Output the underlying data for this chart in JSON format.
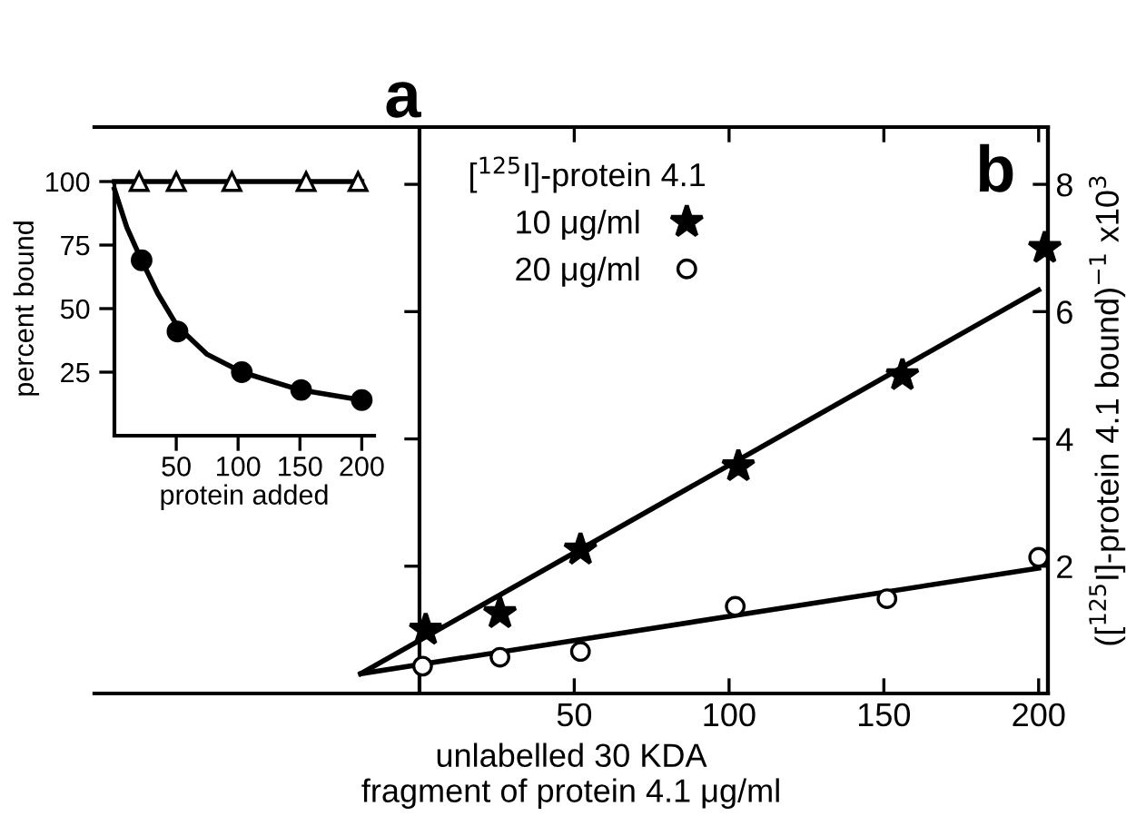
{
  "chart_data": [
    {
      "type": "scatter",
      "xlabel": "protein added",
      "ylabel": "percent bound",
      "annotations": [
        "a"
      ],
      "xlim": [
        0,
        210
      ],
      "ylim": [
        0,
        100
      ],
      "xticks": [
        50,
        100,
        150,
        200
      ],
      "yticks": [
        25,
        50,
        75,
        100
      ],
      "grid": false,
      "legend": false,
      "series": [
        {
          "type": "line",
          "color": "#000000",
          "marker": "none",
          "x": [
            0,
            200
          ],
          "values": [
            100,
            100
          ]
        },
        {
          "color": "#000000",
          "marker": "triangle",
          "x": [
            20,
            50,
            95,
            155,
            197
          ],
          "values": [
            100,
            100,
            100,
            100,
            100
          ]
        },
        {
          "type": "line",
          "color": "#000000",
          "marker": "none",
          "x": [
            0,
            10,
            22,
            35,
            51,
            75,
            103,
            150,
            200
          ],
          "values": [
            97,
            82,
            69,
            56,
            43,
            32,
            25,
            18,
            14
          ]
        },
        {
          "color": "#000000",
          "marker": "circle",
          "x": [
            22,
            51,
            103,
            151,
            200
          ],
          "values": [
            69,
            41,
            25,
            18,
            14
          ]
        }
      ]
    },
    {
      "type": "scatter",
      "xlabel": "unlabelled 30 KDA\nfragment of protein 4.1 μg/ml",
      "y2label": "([$^{125}$I]-protein 4.1 bound)$^{−1}$ x10$^{3}$",
      "legend_title": "[$^{125}$I]-protein 4.1",
      "legend": "top left",
      "annotations": [
        "b"
      ],
      "grid": false,
      "xlim": [
        -105,
        203
      ],
      "xticks": [
        50,
        100,
        150,
        200
      ],
      "y2lim": [
        0,
        8.9
      ],
      "y2ticks": [
        2,
        4,
        6,
        8
      ],
      "series": [
        {
          "type": "line",
          "color": "#000000",
          "marker": "none",
          "axis": "y2",
          "x": [
            -19,
            200
          ],
          "values": [
            0.31,
            6.34
          ]
        },
        {
          "type": "line",
          "color": "#000000",
          "marker": "none",
          "axis": "y2",
          "x": [
            -19,
            200
          ],
          "values": [
            0.31,
            1.97
          ]
        },
        {
          "name": "10 μg/ml",
          "color": "#000000",
          "marker": "star",
          "axis": "y2",
          "x": [
            2,
            26,
            52,
            103,
            156,
            202
          ],
          "values": [
            1.0,
            1.26,
            2.26,
            3.57,
            5.0,
            7.0
          ]
        },
        {
          "name": "20 μg/ml",
          "color": "#000000",
          "marker": "circle",
          "axis": "y2",
          "x": [
            1,
            26,
            52,
            102,
            151,
            200
          ],
          "values": [
            0.43,
            0.57,
            0.66,
            1.37,
            1.49,
            2.14
          ]
        }
      ]
    }
  ]
}
